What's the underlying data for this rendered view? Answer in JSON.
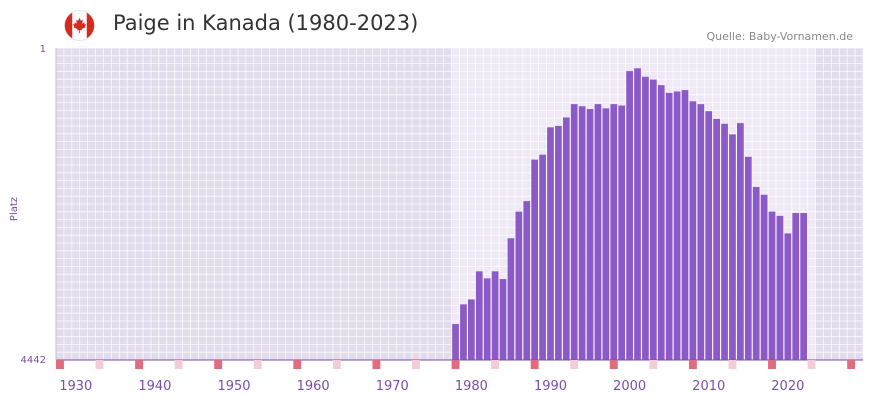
{
  "header": {
    "title": "Paige in Kanada (1980-2023)",
    "source": "Quelle: Baby-Vornamen.de",
    "flag_icon": "canada-flag-icon"
  },
  "colors": {
    "bar": "#8c59c8",
    "background_outer": "#e3dcec",
    "background_inner": "#efe9f5",
    "grid": "#ffffff",
    "axis_marker": "#e06c80",
    "axis_marker_light": "#f3cdd6",
    "axis_line": "#7a4fa8"
  },
  "chart_data": {
    "type": "bar",
    "title": "Paige in Kanada (1980-2023)",
    "xlabel": "",
    "ylabel": "Platz",
    "y_axis_inverted": true,
    "ylim": [
      1,
      4442
    ],
    "y_ticks": [
      "1",
      "4442"
    ],
    "xlim": [
      1928,
      2029
    ],
    "x_ticks": [
      "1930",
      "1940",
      "1950",
      "1960",
      "1970",
      "1980",
      "1990",
      "2000",
      "2010",
      "2020"
    ],
    "highlight_range": [
      1978,
      2023
    ],
    "x": [
      1978,
      1979,
      1980,
      1981,
      1982,
      1983,
      1984,
      1985,
      1986,
      1987,
      1988,
      1989,
      1990,
      1991,
      1992,
      1993,
      1994,
      1995,
      1996,
      1997,
      1998,
      1999,
      2000,
      2001,
      2002,
      2003,
      2004,
      2005,
      2006,
      2007,
      2008,
      2009,
      2010,
      2011,
      2012,
      2013,
      2014,
      2015,
      2016,
      2017,
      2018,
      2019,
      2020,
      2021,
      2022
    ],
    "values": [
      3930,
      3650,
      3580,
      3180,
      3280,
      3180,
      3290,
      2710,
      2330,
      2180,
      1590,
      1520,
      1130,
      1110,
      990,
      800,
      830,
      870,
      800,
      860,
      800,
      820,
      330,
      290,
      410,
      450,
      530,
      640,
      620,
      600,
      760,
      800,
      900,
      1010,
      1080,
      1230,
      1070,
      1550,
      1980,
      2090,
      2330,
      2390,
      2640,
      2350,
      2350
    ],
    "series_name": "Platz"
  }
}
